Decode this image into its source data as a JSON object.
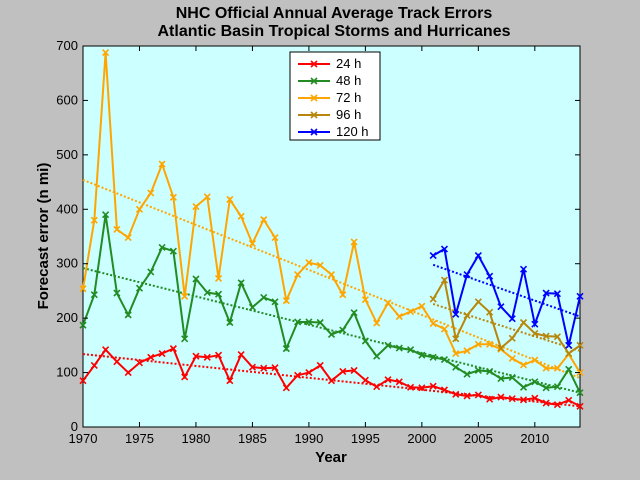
{
  "chart_data": {
    "type": "line",
    "title": "NHC Official Annual Average Track Errors",
    "subtitle": "Atlantic Basin Tropical Storms and Hurricanes",
    "xlabel": "Year",
    "ylabel": "Forecast error (n mi)",
    "xlim": [
      1970,
      2014
    ],
    "ylim": [
      0,
      700
    ],
    "x_ticks": [
      1970,
      1975,
      1980,
      1985,
      1990,
      1995,
      2000,
      2005,
      2010
    ],
    "y_ticks": [
      0,
      100,
      200,
      300,
      400,
      500,
      600,
      700
    ],
    "grid": false,
    "plot_background": "#ccffff",
    "figure_background": "#c0c0c0",
    "legend_position": "top-center",
    "series": [
      {
        "name": "24 h",
        "color": "#ff0000",
        "x_start": 1970,
        "values": [
          85,
          113,
          142,
          120,
          100,
          118,
          128,
          135,
          144,
          92,
          130,
          128,
          132,
          85,
          133,
          110,
          108,
          109,
          72,
          95,
          100,
          113,
          85,
          102,
          104,
          86,
          74,
          87,
          83,
          73,
          72,
          75,
          68,
          60,
          57,
          59,
          51,
          55,
          52,
          50,
          53,
          44,
          41,
          49,
          38
        ],
        "trend": [
          134,
          38
        ]
      },
      {
        "name": "48 h",
        "color": "#228b22",
        "x_start": 1970,
        "values": [
          187,
          243,
          390,
          246,
          206,
          255,
          285,
          330,
          323,
          162,
          272,
          247,
          244,
          192,
          265,
          220,
          238,
          230,
          144,
          193,
          193,
          192,
          170,
          178,
          210,
          158,
          130,
          150,
          145,
          142,
          132,
          128,
          124,
          110,
          97,
          104,
          102,
          89,
          91,
          73,
          83,
          72,
          74,
          106,
          63
        ],
        "trend": [
          292,
          63
        ]
      },
      {
        "name": "72 h",
        "color": "#ffa500",
        "x_start": 1970,
        "values": [
          254,
          380,
          688,
          363,
          348,
          400,
          430,
          483,
          422,
          240,
          405,
          423,
          273,
          418,
          387,
          337,
          381,
          348,
          232,
          280,
          302,
          297,
          280,
          243,
          340,
          234,
          191,
          228,
          203,
          212,
          222,
          190,
          180,
          135,
          140,
          152,
          152,
          143,
          126,
          114,
          123,
          108,
          108,
          134,
          100
        ],
        "trend": [
          454,
          90
        ]
      },
      {
        "name": "96 h",
        "color": "#b8860b",
        "x_start": 2001,
        "values": [
          235,
          270,
          162,
          205,
          230,
          211,
          145,
          163,
          192,
          172,
          167,
          166,
          135,
          150
        ],
        "trend": [
          226,
          140
        ]
      },
      {
        "name": "120 h",
        "color": "#0000ff",
        "x_start": 2001,
        "values": [
          315,
          327,
          207,
          280,
          315,
          277,
          221,
          199,
          290,
          189,
          246,
          245,
          150,
          240
        ],
        "trend": [
          298,
          203
        ]
      }
    ]
  }
}
